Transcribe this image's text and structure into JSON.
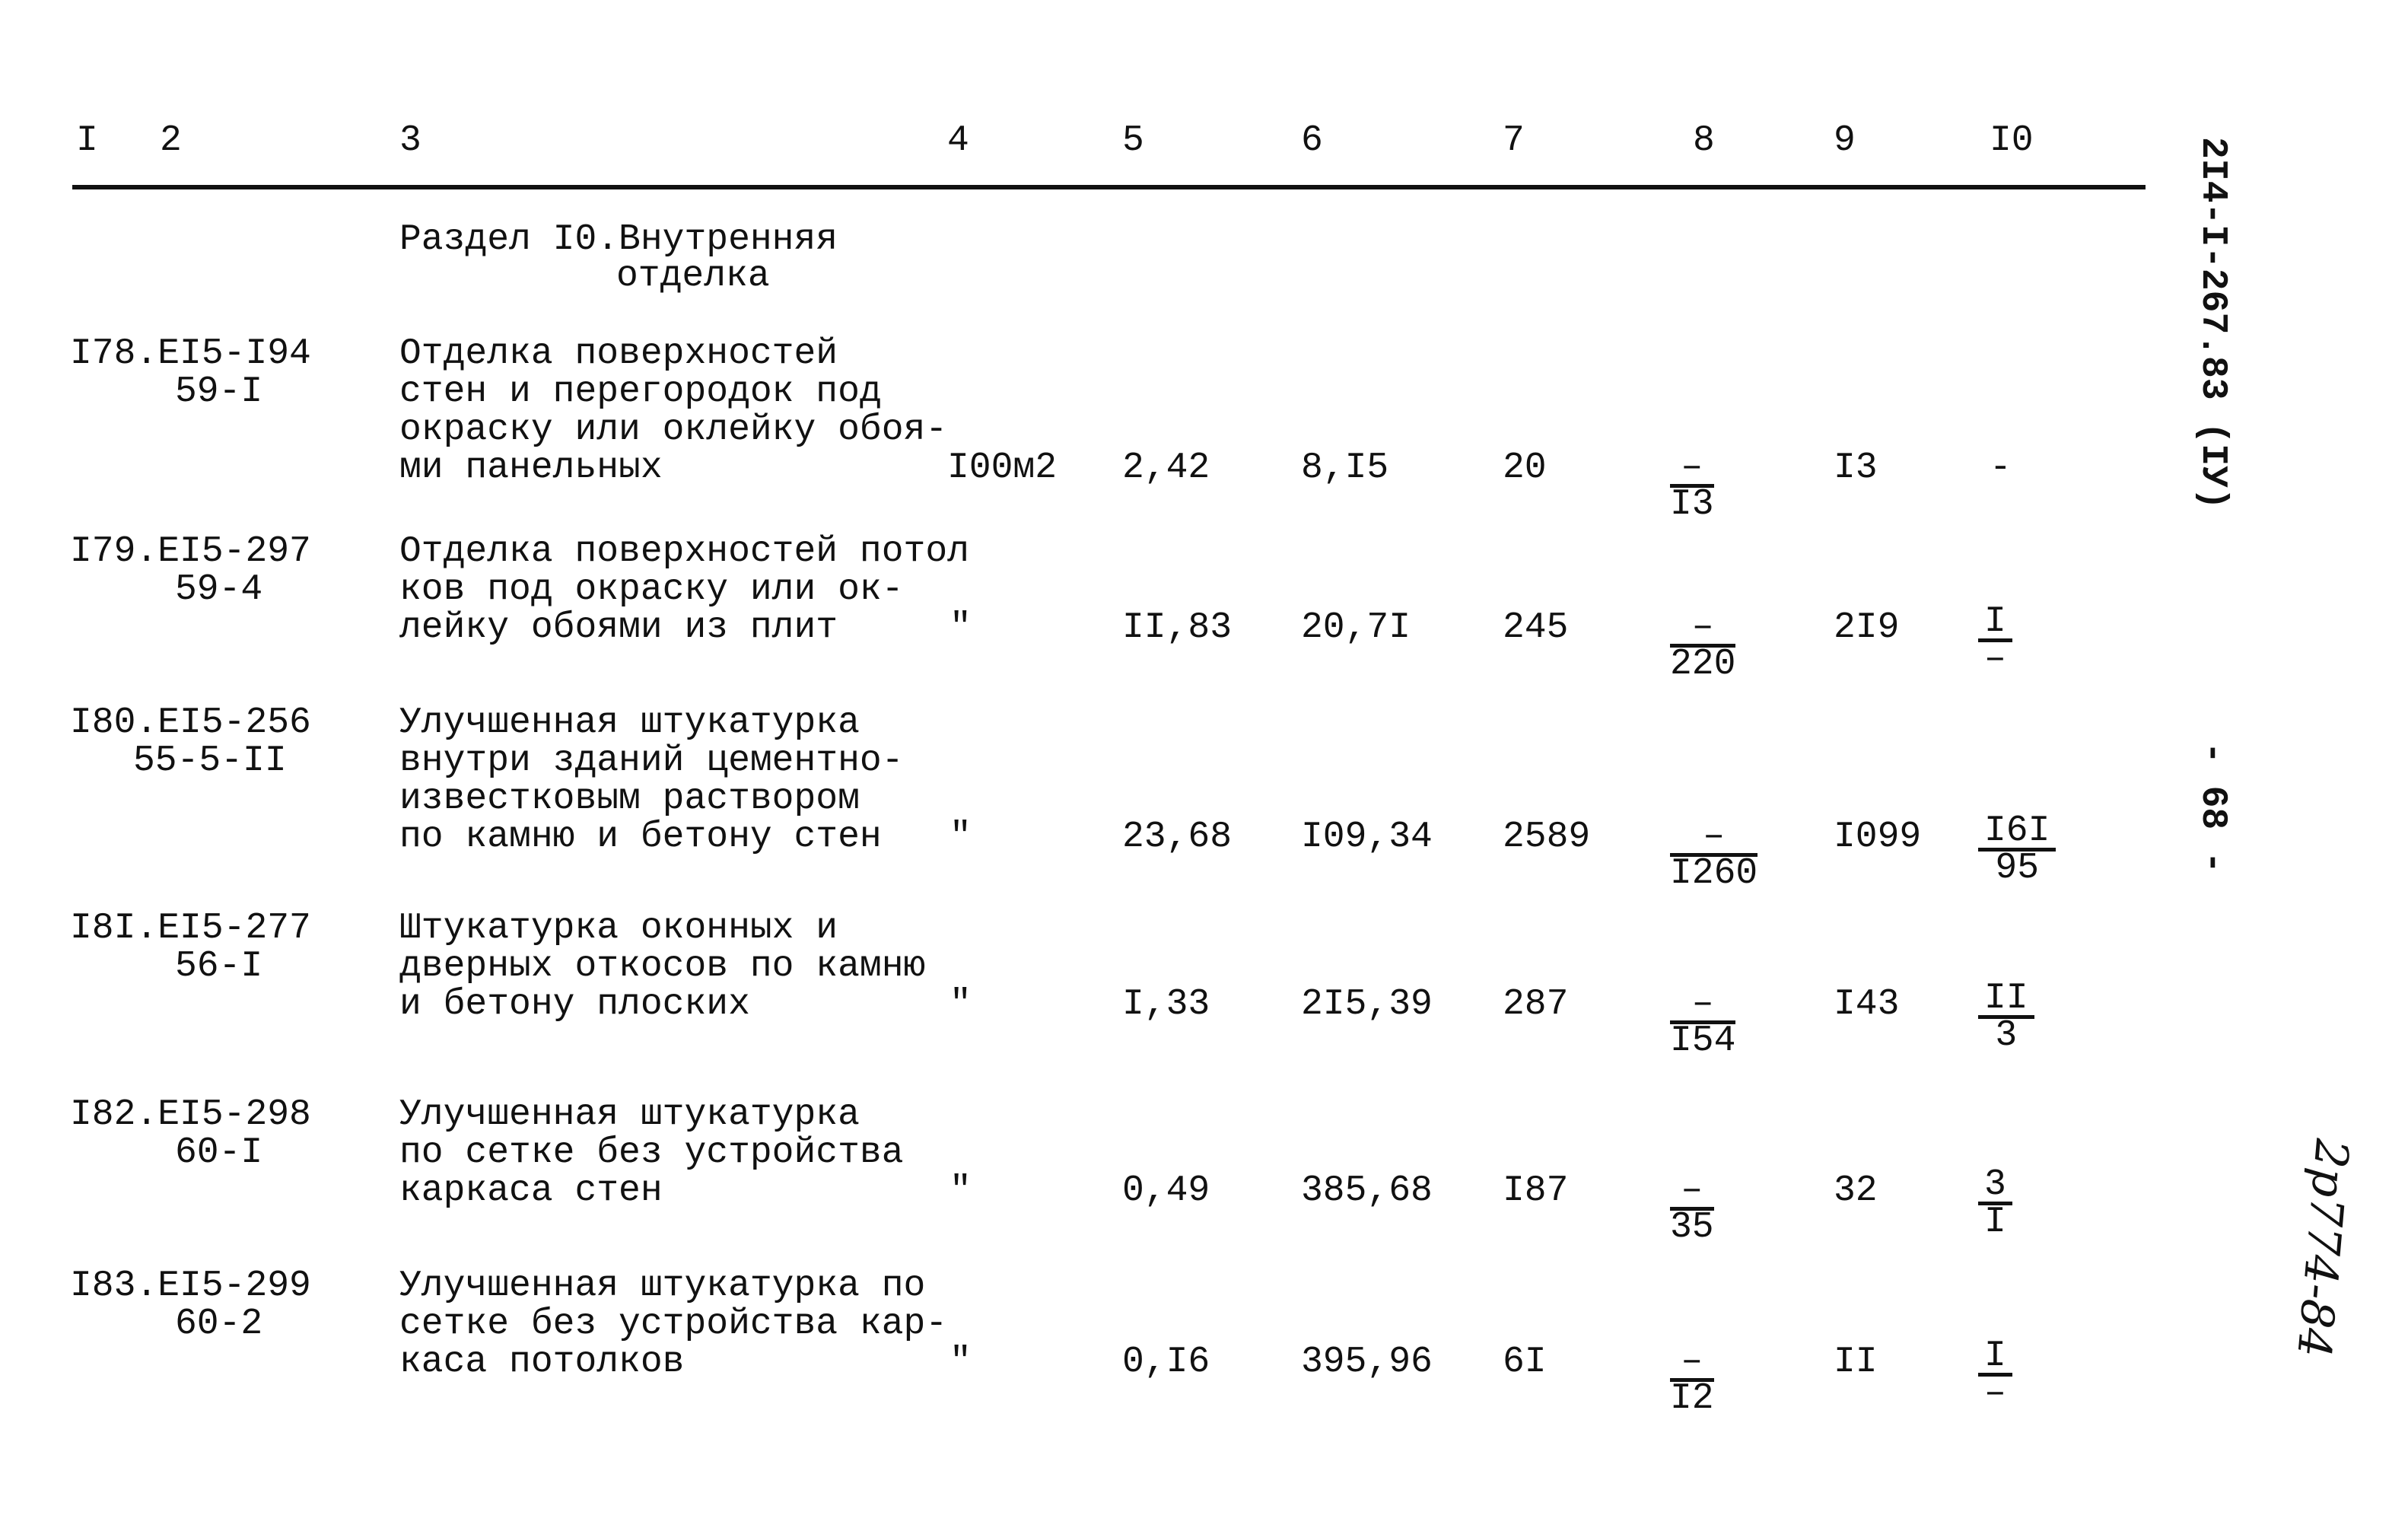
{
  "header": {
    "columns": [
      "I",
      "2",
      "3",
      "4",
      "5",
      "6",
      "7",
      "8",
      "9",
      "I0"
    ]
  },
  "section": {
    "line1": "Раздел I0.Внутренняя",
    "line2": "отделка"
  },
  "rows": [
    {
      "code": "I78.EI5-I94",
      "sub": "59-I",
      "desc": [
        "Отделка поверхностей",
        "стен и перегородок под",
        "окраску или оклейку обоя-",
        "ми панельных"
      ],
      "unit": "I00м2",
      "c5": "2,42",
      "c6": "8,I5",
      "c7": "20",
      "c8_num": "–",
      "c8_den": "I3",
      "c9": "I3",
      "c10_num": "-",
      "c10_den": ""
    },
    {
      "code": "I79.EI5-297",
      "sub": "59-4",
      "desc": [
        "Отделка поверхностей потол",
        "ков под окраску или ок-",
        "лейку обоями из плит"
      ],
      "unit": "\"",
      "c5": "II,83",
      "c6": "20,7I",
      "c7": "245",
      "c8_num": "–",
      "c8_den": "220",
      "c9": "2I9",
      "c10_num": "I",
      "c10_den": "–"
    },
    {
      "code": "I80.EI5-256",
      "sub": "55-5-II",
      "desc": [
        "Улучшенная штукатурка",
        "внутри зданий цементно-",
        "известковым раствором",
        "по камню и бетону стен"
      ],
      "unit": "\"",
      "c5": "23,68",
      "c6": "I09,34",
      "c7": "2589",
      "c8_num": "–",
      "c8_den": "I260",
      "c9": "I099",
      "c10_num": "I6I",
      "c10_den": "95"
    },
    {
      "code": "I8I.EI5-277",
      "sub": "56-I",
      "desc": [
        "Штукатурка оконных и",
        "дверных откосов по камню",
        "и бетону плоских"
      ],
      "unit": "\"",
      "c5": "I,33",
      "c6": "2I5,39",
      "c7": "287",
      "c8_num": "–",
      "c8_den": "I54",
      "c9": "I43",
      "c10_num": "II",
      "c10_den": "3"
    },
    {
      "code": "I82.EI5-298",
      "sub": "60-I",
      "desc": [
        "Улучшенная штукатурка",
        "по сетке без устройства",
        "каркаса стен"
      ],
      "unit": "\"",
      "c5": "0,49",
      "c6": "385,68",
      "c7": "I87",
      "c8_num": "–",
      "c8_den": "35",
      "c9": "32",
      "c10_num": "3",
      "c10_den": "I"
    },
    {
      "code": "I83.EI5-299",
      "sub": "60-2",
      "desc": [
        "Улучшенная штукатурка по",
        "сетке без устройства кар-",
        "каса потолков"
      ],
      "unit": "\"",
      "c5": "0,I6",
      "c6": "395,96",
      "c7": "6I",
      "c8_num": "–",
      "c8_den": "I2",
      "c9": "II",
      "c10_num": "I",
      "c10_den": "–"
    }
  ],
  "margin": {
    "doc_code": "2I4-I-267.83 (IУ)",
    "page": "- 68 -",
    "handwritten": "2р774-84"
  }
}
